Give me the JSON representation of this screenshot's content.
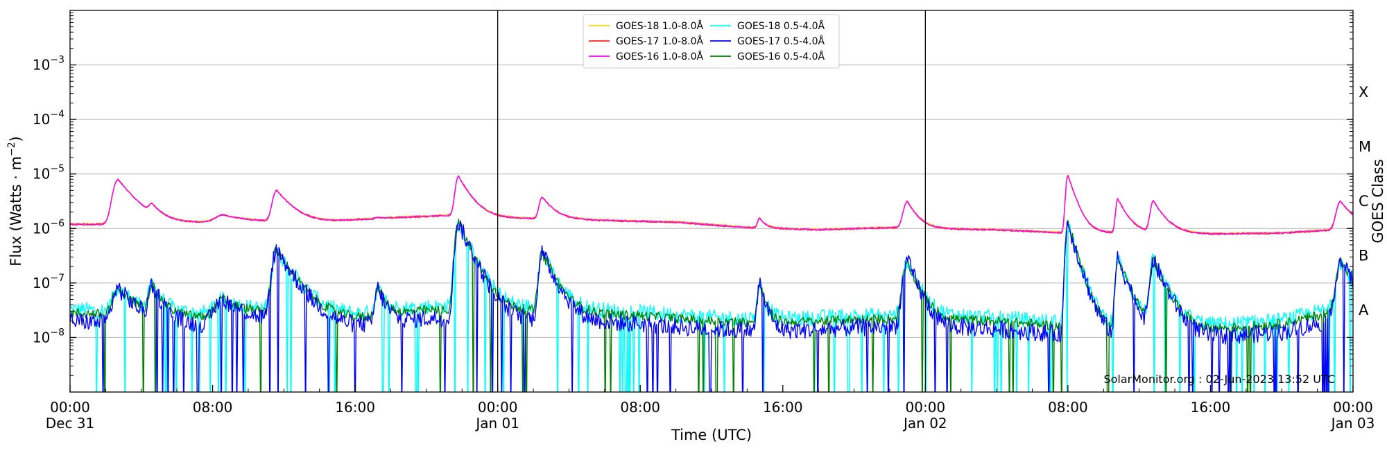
{
  "chart_data": {
    "type": "line",
    "xlabel": "Time (UTC)",
    "ylabel": "Flux (Watts · m",
    "ylabel_sup": "−2",
    "ylabel_close": ")",
    "right_label": "GOES Class",
    "credit": "SolarMonitor.org : 02-Jun-2023 13:52 UTC",
    "x_range_hours": [
      0,
      72
    ],
    "y_range_log10": [
      -9.0,
      -2.0
    ],
    "y_scale": "log",
    "grid": "horizontal",
    "legend_placement": "top-center",
    "x_ticks": [
      {
        "h": 0,
        "line1": "00:00",
        "line2": "Dec 31"
      },
      {
        "h": 8,
        "line1": "08:00",
        "line2": ""
      },
      {
        "h": 16,
        "line1": "16:00",
        "line2": ""
      },
      {
        "h": 24,
        "line1": "00:00",
        "line2": "Jan 01"
      },
      {
        "h": 32,
        "line1": "08:00",
        "line2": ""
      },
      {
        "h": 40,
        "line1": "16:00",
        "line2": ""
      },
      {
        "h": 48,
        "line1": "00:00",
        "line2": "Jan 02"
      },
      {
        "h": 56,
        "line1": "08:00",
        "line2": ""
      },
      {
        "h": 64,
        "line1": "16:00",
        "line2": ""
      },
      {
        "h": 72,
        "line1": "00:00",
        "line2": "Jan 03"
      }
    ],
    "y_ticks": [
      {
        "exp": -8,
        "label": "10",
        "sup": "−8"
      },
      {
        "exp": -7,
        "label": "10",
        "sup": "−7"
      },
      {
        "exp": -6,
        "label": "10",
        "sup": "−6"
      },
      {
        "exp": -5,
        "label": "10",
        "sup": "−5"
      },
      {
        "exp": -4,
        "label": "10",
        "sup": "−4"
      },
      {
        "exp": -3,
        "label": "10",
        "sup": "−3"
      }
    ],
    "day_boundaries_hours": [
      24,
      48
    ],
    "goes_classes": [
      {
        "label": "A",
        "exp": -7.5
      },
      {
        "label": "B",
        "exp": -6.5
      },
      {
        "label": "C",
        "exp": -5.5
      },
      {
        "label": "M",
        "exp": -4.5
      },
      {
        "label": "X",
        "exp": -3.5
      }
    ],
    "series": [
      {
        "name": "GOES-18 1.0-8.0Å",
        "color": "#FFD700",
        "col": 0,
        "row": 0
      },
      {
        "name": "GOES-17 1.0-8.0Å",
        "color": "#FF2020",
        "col": 0,
        "row": 1
      },
      {
        "name": "GOES-16 1.0-8.0Å",
        "color": "#FF00FF",
        "col": 0,
        "row": 2
      },
      {
        "name": "GOES-18 0.5-4.0Å",
        "color": "#00FFFF",
        "col": 1,
        "row": 0
      },
      {
        "name": "GOES-17 0.5-4.0Å",
        "color": "#0000FF",
        "col": 1,
        "row": 1
      },
      {
        "name": "GOES-16 0.5-4.0Å",
        "color": "#008000",
        "col": 1,
        "row": 2
      }
    ],
    "long_base": [
      [
        0,
        -5.92
      ],
      [
        2,
        -5.92
      ],
      [
        6,
        -5.9
      ],
      [
        10,
        -5.87
      ],
      [
        14,
        -5.88
      ],
      [
        18,
        -5.8
      ],
      [
        22,
        -5.75
      ],
      [
        24,
        -5.8
      ],
      [
        30,
        -5.85
      ],
      [
        34,
        -5.88
      ],
      [
        38,
        -5.98
      ],
      [
        42,
        -6.02
      ],
      [
        46,
        -5.98
      ],
      [
        48,
        -6.0
      ],
      [
        52,
        -6.02
      ],
      [
        56,
        -6.08
      ],
      [
        60,
        -6.08
      ],
      [
        64,
        -6.1
      ],
      [
        68,
        -6.08
      ],
      [
        72,
        -6.0
      ]
    ],
    "short_base": [
      [
        0,
        -7.6
      ],
      [
        4,
        -7.65
      ],
      [
        8,
        -7.68
      ],
      [
        12,
        -7.6
      ],
      [
        16,
        -7.7
      ],
      [
        20,
        -7.55
      ],
      [
        24,
        -7.55
      ],
      [
        28,
        -7.6
      ],
      [
        32,
        -7.65
      ],
      [
        36,
        -7.75
      ],
      [
        40,
        -7.78
      ],
      [
        44,
        -7.72
      ],
      [
        48,
        -7.7
      ],
      [
        52,
        -7.75
      ],
      [
        56,
        -7.85
      ],
      [
        60,
        -7.9
      ],
      [
        64,
        -7.9
      ],
      [
        68,
        -7.8
      ],
      [
        72,
        -7.5
      ]
    ],
    "flares": [
      {
        "t": 2.7,
        "long": -5.1,
        "short": -7.1,
        "rise": 0.25,
        "decay": 0.9
      },
      {
        "t": 4.6,
        "long": -5.68,
        "short": -7.05,
        "rise": 0.15,
        "decay": 0.5
      },
      {
        "t": 8.6,
        "long": -5.75,
        "short": -7.3,
        "rise": 0.4,
        "decay": 1.2
      },
      {
        "t": 11.6,
        "long": -5.3,
        "short": -6.4,
        "rise": 0.2,
        "decay": 0.8
      },
      {
        "t": 17.3,
        "long": -5.8,
        "short": -7.1,
        "rise": 0.15,
        "decay": 0.4
      },
      {
        "t": 21.8,
        "long": -5.04,
        "short": -5.9,
        "rise": 0.15,
        "decay": 0.6
      },
      {
        "t": 26.5,
        "long": -5.42,
        "short": -6.45,
        "rise": 0.15,
        "decay": 0.6
      },
      {
        "t": 38.7,
        "long": -5.8,
        "short": -7.0,
        "rise": 0.1,
        "decay": 0.3
      },
      {
        "t": 47.0,
        "long": -5.5,
        "short": -6.6,
        "rise": 0.2,
        "decay": 0.5
      },
      {
        "t": 56.0,
        "long": -5.02,
        "short": -5.9,
        "rise": 0.1,
        "decay": 0.4
      },
      {
        "t": 58.8,
        "long": -5.45,
        "short": -6.55,
        "rise": 0.1,
        "decay": 0.5
      },
      {
        "t": 60.8,
        "long": -5.5,
        "short": -6.6,
        "rise": 0.15,
        "decay": 0.6
      },
      {
        "t": 71.3,
        "long": -5.5,
        "short": -6.6,
        "rise": 0.2,
        "decay": 0.7
      }
    ]
  }
}
